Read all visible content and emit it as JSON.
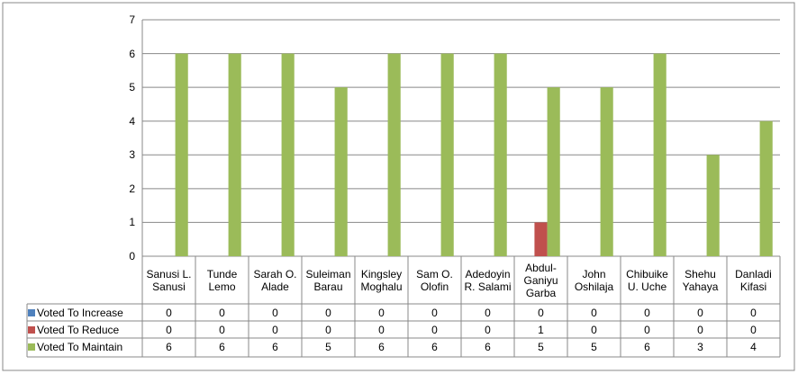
{
  "chart_data": {
    "type": "bar",
    "categories": [
      "Sanusi L. Sanusi",
      "Tunde Lemo",
      "Sarah O. Alade",
      "Suleiman Barau",
      "Kingsley Moghalu",
      "Sam O. Olofin",
      "Adedoyin R. Salami",
      "Abdul-Ganiyu Garba",
      "John Oshilaja",
      "Chibuike U. Uche",
      "Shehu Yahaya",
      "Danladi Kifasi"
    ],
    "series": [
      {
        "name": "Voted To Increase",
        "color": "#4f81bd",
        "values": [
          0,
          0,
          0,
          0,
          0,
          0,
          0,
          0,
          0,
          0,
          0,
          0
        ]
      },
      {
        "name": "Voted To Reduce",
        "color": "#c0504d",
        "values": [
          0,
          0,
          0,
          0,
          0,
          0,
          0,
          1,
          0,
          0,
          0,
          0
        ]
      },
      {
        "name": "Voted To Maintain",
        "color": "#9bbb59",
        "values": [
          6,
          6,
          6,
          5,
          6,
          6,
          6,
          5,
          5,
          6,
          3,
          4
        ]
      }
    ],
    "ylim": [
      0,
      7
    ],
    "yticks": [
      0,
      1,
      2,
      3,
      4,
      5,
      6,
      7
    ],
    "grid": true
  }
}
